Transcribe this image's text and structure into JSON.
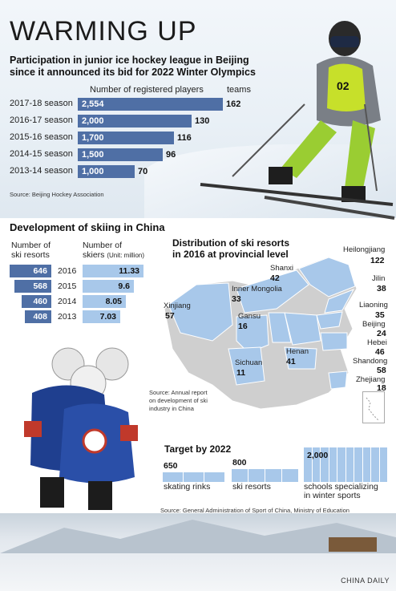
{
  "header": {
    "title": "WARMING UP",
    "subtitle": "Participation in junior ice hockey league in Beijing since it announced its bid for 2022 Winter Olympics"
  },
  "hockey": {
    "col_players": "Number of registered players",
    "col_teams": "teams",
    "source": "Source: Beijing Hockey Association"
  },
  "skiing": {
    "title": "Development of skiing in China",
    "resorts_head_1": "Number of",
    "resorts_head_2": "ski resorts",
    "skiers_head_1": "Number of",
    "skiers_head_2": "skiers",
    "skiers_unit": "(Unit: million)",
    "source_1": "Source: Annual report",
    "source_2": "on development of ski",
    "source_3": "industry in China"
  },
  "map": {
    "title_1": "Distribution of ski resorts",
    "title_2": "in 2016 at provincial level",
    "provinces": [
      {
        "name": "Heilongjiang",
        "value": "122"
      },
      {
        "name": "Jilin",
        "value": "38"
      },
      {
        "name": "Liaoning",
        "value": "35"
      },
      {
        "name": "Beijing",
        "value": "24"
      },
      {
        "name": "Hebei",
        "value": "46"
      },
      {
        "name": "Shandong",
        "value": "58"
      },
      {
        "name": "Zhejiang",
        "value": "18"
      },
      {
        "name": "Shanxi",
        "value": "42"
      },
      {
        "name": "Inner Mongolia",
        "value": "33"
      },
      {
        "name": "Xinjiang",
        "value": "57"
      },
      {
        "name": "Gansu",
        "value": "16"
      },
      {
        "name": "Sichuan",
        "value": "11"
      },
      {
        "name": "Henan",
        "value": "41"
      }
    ]
  },
  "target": {
    "title": "Target by 2022",
    "items": [
      {
        "value": "650",
        "label": "skating rinks"
      },
      {
        "value": "800",
        "label": "ski resorts"
      },
      {
        "value": "2,000",
        "label_1": "schools specializing",
        "label_2": "in winter sports"
      }
    ],
    "source": "Source: General Administration of Sport of China, Ministry of Education"
  },
  "credit": "CHINA DAILY",
  "jersey_number": "02",
  "colors": {
    "bar_dark": "#4f6fa5",
    "bar_light": "#a8c8ea",
    "map_fill": "#a8c8ea",
    "map_grey": "#cfcfcf"
  },
  "chart_data": [
    {
      "type": "bar",
      "title": "Participation in junior ice hockey league in Beijing since it announced its bid for 2022 Winter Olympics",
      "categories": [
        "2017-18 season",
        "2016-17 season",
        "2015-16 season",
        "2014-15 season",
        "2013-14 season"
      ],
      "series": [
        {
          "name": "Number of registered players",
          "values": [
            2554,
            2000,
            1700,
            1500,
            1000
          ],
          "labels": [
            "2,554",
            "2,000",
            "1,700",
            "1,500",
            "1,000"
          ]
        },
        {
          "name": "teams",
          "values": [
            162,
            130,
            116,
            96,
            70
          ]
        }
      ],
      "xlim": [
        0,
        2554
      ]
    },
    {
      "type": "bar",
      "title": "Development of skiing in China",
      "categories": [
        "2016",
        "2015",
        "2014",
        "2013"
      ],
      "series": [
        {
          "name": "Number of ski resorts",
          "values": [
            646,
            568,
            460,
            408
          ]
        },
        {
          "name": "Number of skiers (Unit: million)",
          "values": [
            11.33,
            9.6,
            8.05,
            7.03
          ],
          "labels": [
            "11.33",
            "9.6",
            "8.05",
            "7.03"
          ]
        }
      ]
    }
  ]
}
